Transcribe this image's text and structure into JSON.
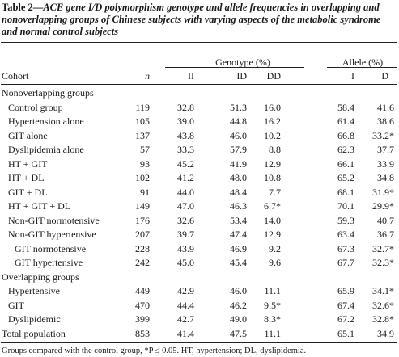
{
  "table": {
    "label": "Table 2—",
    "caption": "ACE gene I/D polymorphism genotype and allele frequencies in overlapping and nonoverlapping groups of Chinese subjects with varying aspects of the metabolic syndrome and normal control subjects",
    "group_headers": {
      "genotype": "Genotype (%)",
      "allele": "Allele (%)"
    },
    "columns": [
      "Cohort",
      "n",
      "II",
      "ID",
      "DD",
      "I",
      "D"
    ],
    "rows": [
      {
        "cohort": "Nonoverlapping groups",
        "type": "section"
      },
      {
        "cohort": "Control group",
        "type": "row",
        "indent": 1,
        "n": "119",
        "II": "32.8",
        "ID": "51.3",
        "DD": "16.0",
        "I": "58.4",
        "D": "41.6"
      },
      {
        "cohort": "Hypertension alone",
        "type": "row",
        "indent": 1,
        "n": "105",
        "II": "39.0",
        "ID": "44.8",
        "DD": "16.2",
        "I": "61.4",
        "D": "38.6"
      },
      {
        "cohort": "GIT alone",
        "type": "row",
        "indent": 1,
        "n": "137",
        "II": "43.8",
        "ID": "46.0",
        "DD": "10.2",
        "I": "66.8",
        "D": "33.2*"
      },
      {
        "cohort": "Dyslipidemia alone",
        "type": "row",
        "indent": 1,
        "n": "57",
        "II": "33.3",
        "ID": "57.9",
        "DD": "8.8",
        "I": "62.3",
        "D": "37.7"
      },
      {
        "cohort": "HT + GIT",
        "type": "row",
        "indent": 1,
        "n": "93",
        "II": "45.2",
        "ID": "41.9",
        "DD": "12.9",
        "I": "66.1",
        "D": "33.9"
      },
      {
        "cohort": "HT + DL",
        "type": "row",
        "indent": 1,
        "n": "102",
        "II": "41.2",
        "ID": "48.0",
        "DD": "10.8",
        "I": "65.2",
        "D": "34.8"
      },
      {
        "cohort": "GIT + DL",
        "type": "row",
        "indent": 1,
        "n": "91",
        "II": "44.0",
        "ID": "48.4",
        "DD": "7.7",
        "I": "68.1",
        "D": "31.9*"
      },
      {
        "cohort": "HT + GIT + DL",
        "type": "row",
        "indent": 1,
        "n": "149",
        "II": "47.0",
        "ID": "46.3",
        "DD": "6.7*",
        "I": "70.1",
        "D": "29.9*"
      },
      {
        "cohort": "Non-GIT normotensive",
        "type": "row",
        "indent": 1,
        "n": "176",
        "II": "32.6",
        "ID": "53.4",
        "DD": "14.0",
        "I": "59.3",
        "D": "40.7"
      },
      {
        "cohort": "Non-GIT hypertensive",
        "type": "row",
        "indent": 1,
        "n": "207",
        "II": "39.7",
        "ID": "47.4",
        "DD": "12.9",
        "I": "63.4",
        "D": "36.7"
      },
      {
        "cohort": "GIT normotensive",
        "type": "row",
        "indent": 2,
        "n": "228",
        "II": "43.9",
        "ID": "46.9",
        "DD": "9.2",
        "I": "67.3",
        "D": "32.7*"
      },
      {
        "cohort": "GIT hypertensive",
        "type": "row",
        "indent": 2,
        "n": "242",
        "II": "45.0",
        "ID": "45.4",
        "DD": "9.6",
        "I": "67.7",
        "D": "32.3*"
      },
      {
        "cohort": "Overlapping groups",
        "type": "section"
      },
      {
        "cohort": "Hypertensive",
        "type": "row",
        "indent": 1,
        "n": "449",
        "II": "42.9",
        "ID": "46.0",
        "DD": "11.1",
        "I": "65.9",
        "D": "34.1*"
      },
      {
        "cohort": "GIT",
        "type": "row",
        "indent": 1,
        "n": "470",
        "II": "44.4",
        "ID": "46.2",
        "DD": "9.5*",
        "I": "67.4",
        "D": "32.6*"
      },
      {
        "cohort": "Dyslipidemic",
        "type": "row",
        "indent": 1,
        "n": "399",
        "II": "42.7",
        "ID": "49.0",
        "DD": "8.3*",
        "I": "67.2",
        "D": "32.8*"
      },
      {
        "cohort": "Total population",
        "type": "row",
        "indent": 0,
        "n": "853",
        "II": "41.4",
        "ID": "47.5",
        "DD": "11.1",
        "I": "65.1",
        "D": "34.9"
      }
    ],
    "footnote": "Groups compared with the control group, *P ≤ 0.05. HT, hypertension; DL, dyslipidemia."
  }
}
